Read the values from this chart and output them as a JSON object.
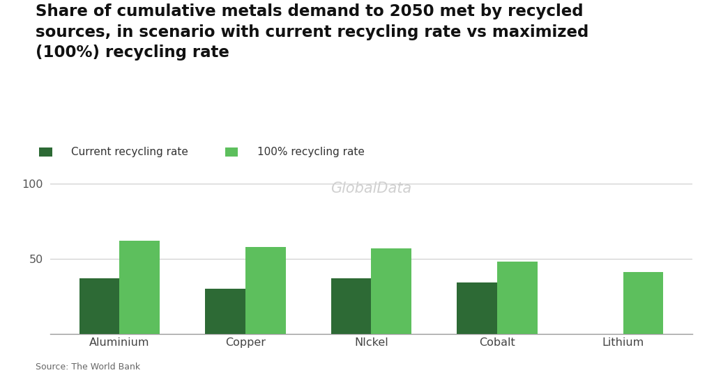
{
  "categories": [
    "Aluminium",
    "Copper",
    "NIckel",
    "Cobalt",
    "Lithium"
  ],
  "current_recycling": [
    37,
    30,
    37,
    34,
    0
  ],
  "max_recycling": [
    62,
    58,
    57,
    48,
    41
  ],
  "color_current": "#2d6a35",
  "color_max": "#5dbf5d",
  "title_line1": "Share of cumulative metals demand to 2050 met by recycled",
  "title_line2": "sources, in scenario with current recycling rate vs maximized",
  "title_line3": "(100%) recycling rate",
  "legend_current": "Current recycling rate",
  "legend_max": "100% recycling rate",
  "watermark": "GlobalData",
  "source": "Source: The World Bank",
  "ylim": [
    0,
    115
  ],
  "yticks": [
    50,
    100
  ],
  "bar_width": 0.32,
  "background_color": "#ffffff",
  "title_fontsize": 16.5,
  "legend_fontsize": 11,
  "tick_fontsize": 11.5,
  "source_fontsize": 9,
  "watermark_fontsize": 15
}
